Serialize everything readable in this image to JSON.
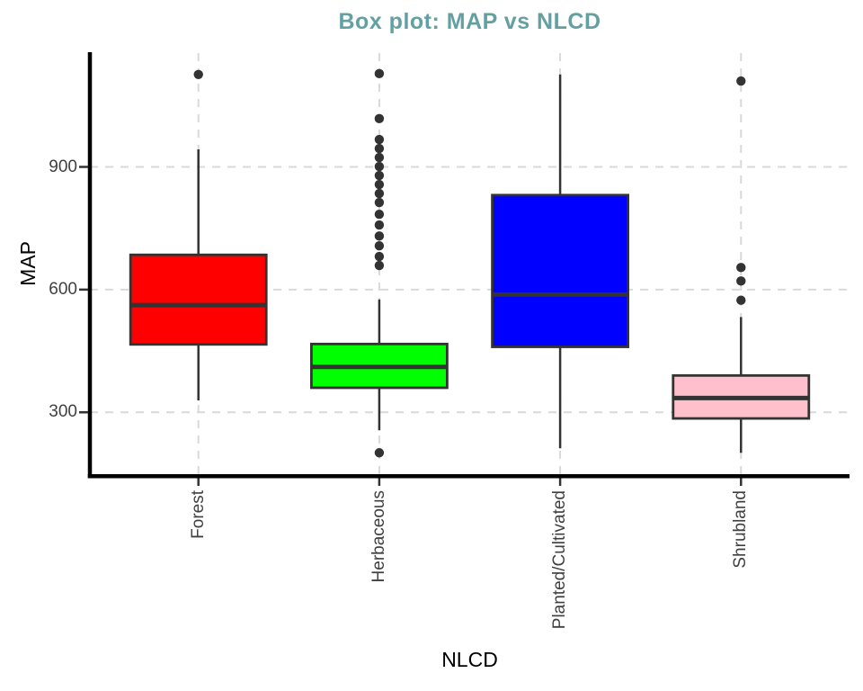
{
  "chart_data": {
    "type": "boxplot",
    "title": "Box plot: MAP vs NLCD",
    "xlabel": "NLCD",
    "ylabel": "MAP",
    "categories": [
      "Forest",
      "Herbaceous",
      "Planted/Cultivated",
      "Shrubland"
    ],
    "y_ticks": [
      300,
      600,
      900
    ],
    "ylim": [
      148,
      1177
    ],
    "grid": "dashed major gridlines: horizontal at y ticks, vertical at each category",
    "legend": "none",
    "series": [
      {
        "name": "Forest",
        "color": "#FF0000",
        "whisker_low": 329,
        "q1": 466,
        "median": 562,
        "q3": 685,
        "whisker_high": 943,
        "outliers": [
          1126
        ]
      },
      {
        "name": "Herbaceous",
        "color": "#00FF00",
        "whisker_low": 256,
        "q1": 360,
        "median": 411,
        "q3": 467,
        "whisker_high": 576,
        "outliers": [
          1128,
          1018,
          967,
          945,
          923,
          901,
          879,
          857,
          835,
          813,
          784,
          758,
          731,
          707,
          681,
          659,
          201
        ]
      },
      {
        "name": "Planted/Cultivated",
        "color": "#0000FF",
        "whisker_low": 212,
        "q1": 460,
        "median": 588,
        "q3": 831,
        "whisker_high": 1126,
        "outliers": []
      },
      {
        "name": "Shrubland",
        "color": "#FFC0CB",
        "whisker_low": 201,
        "q1": 285,
        "median": 335,
        "q3": 390,
        "whisker_high": 533,
        "outliers": [
          1110,
          654,
          621,
          574
        ]
      }
    ],
    "colors": {
      "title": "#64a0a2",
      "axis_text": "#404040",
      "box_stroke": "#333333",
      "median": "#333333",
      "outlier": "#333333",
      "gridline": "#d9d9d9",
      "axis_line": "#000000"
    }
  }
}
